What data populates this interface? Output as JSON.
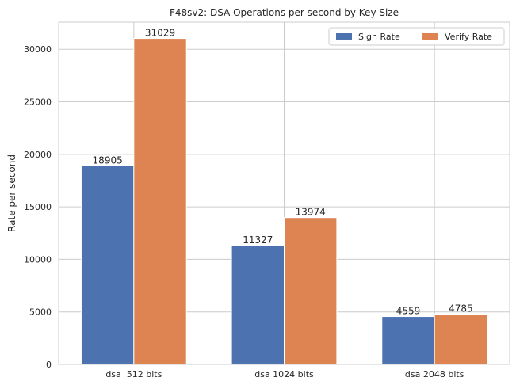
{
  "chart_data": {
    "type": "bar",
    "title": "F48sv2: DSA Operations per second by Key Size",
    "xlabel": "",
    "ylabel": "Rate per second",
    "categories": [
      "dsa  512 bits",
      "dsa 1024 bits",
      "dsa 2048 bits"
    ],
    "series": [
      {
        "name": "Sign Rate",
        "color": "#4c72b0",
        "values": [
          18905,
          11327,
          4559
        ]
      },
      {
        "name": "Verify Rate",
        "color": "#dd8452",
        "values": [
          31029,
          13974,
          4785
        ]
      }
    ],
    "ylim": [
      0,
      32581
    ],
    "yticks": [
      0,
      5000,
      10000,
      15000,
      20000,
      25000,
      30000
    ],
    "grid": true,
    "legend": {
      "position": "top-right",
      "columns": 2
    }
  }
}
